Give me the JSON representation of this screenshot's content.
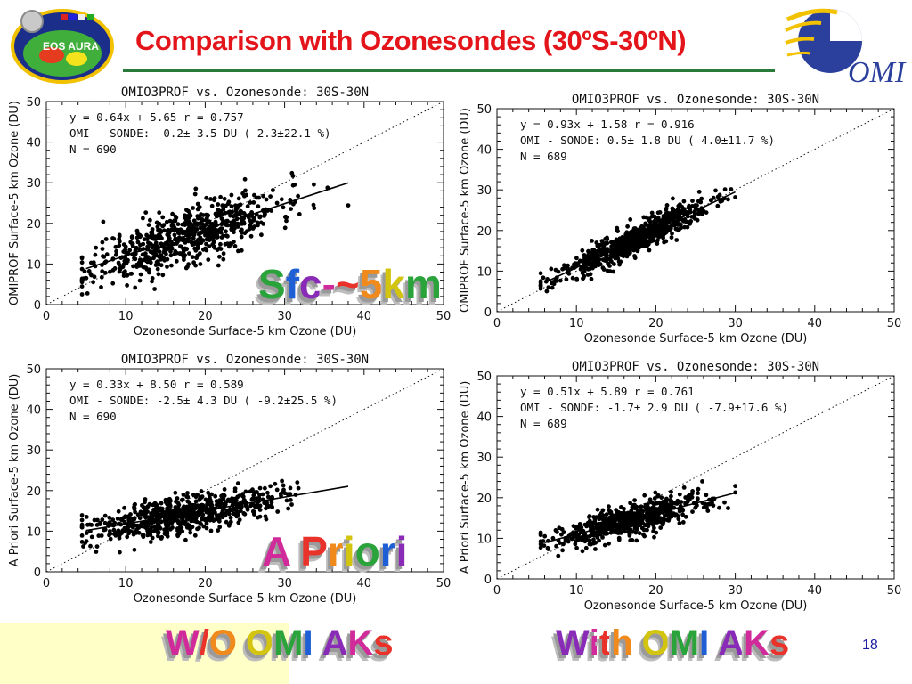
{
  "slide": {
    "title": "Comparison with Ozonesondes (30ºS-30ºN)",
    "page_number": "18",
    "logo_left_text": "EOS AURA",
    "logo_right_text": "OMI",
    "labels": {
      "sfc": "Sfc-~5km",
      "apriori": "A Priori",
      "without": "W/O OMI AKs",
      "with": "With OMI AKs"
    },
    "colors": {
      "title": "#e4141b",
      "rule": "#2a7a3b",
      "page_number": "#1a1aa0",
      "bottom_pad": "#ffffc8"
    }
  },
  "chart_data": [
    {
      "id": "tl",
      "type": "scatter",
      "title": "OMIO3PROF vs. Ozonesonde: 30S-30N",
      "xlabel": "Ozonesonde Surface-5 km Ozone (DU)",
      "ylabel": "OMIPROF Surface-5 km Ozone (DU)",
      "xlim": [
        0,
        50
      ],
      "ylim": [
        0,
        50
      ],
      "xticks": [
        "0",
        "10",
        "20",
        "30",
        "40",
        "50"
      ],
      "yticks": [
        "0",
        "10",
        "20",
        "30",
        "40",
        "50"
      ],
      "stats": [
        "y =    0.64x +    5.65    r = 0.757",
        "OMI - SONDE:   -0.2± 3.5 DU (  2.3±22.1 %)",
        "N =    690"
      ],
      "fit": {
        "slope": 0.64,
        "intercept": 5.65,
        "x_range": [
          5,
          38
        ]
      },
      "one_to_one": true,
      "scatter": {
        "n": 690,
        "x_mean": 17.5,
        "x_sd": 5.8,
        "x_min": 4.5,
        "x_max": 38,
        "resid_sd": 3.5,
        "seed": 11
      }
    },
    {
      "id": "tr",
      "type": "scatter",
      "title": "OMIO3PROF vs. Ozonesonde: 30S-30N",
      "xlabel": "Ozonesonde Surface-5 km Ozone (DU)",
      "ylabel": "OMIPROF Surface-5 km Ozone (DU)",
      "xlim": [
        0,
        50
      ],
      "ylim": [
        0,
        50
      ],
      "xticks": [
        "0",
        "10",
        "20",
        "30",
        "40",
        "50"
      ],
      "yticks": [
        "0",
        "10",
        "20",
        "30",
        "40",
        "50"
      ],
      "stats": [
        "y =    0.93x +    1.58    r = 0.916",
        "OMI - SONDE:    0.5± 1.8 DU (  4.0±11.7 %)",
        "N =    689"
      ],
      "fit": {
        "slope": 0.93,
        "intercept": 1.58,
        "x_range": [
          6,
          30
        ]
      },
      "one_to_one": true,
      "scatter": {
        "n": 689,
        "x_mean": 17,
        "x_sd": 4.8,
        "x_min": 5.5,
        "x_max": 30,
        "resid_sd": 1.8,
        "seed": 23
      }
    },
    {
      "id": "bl",
      "type": "scatter",
      "title": "OMIO3PROF vs. Ozonesonde: 30S-30N",
      "xlabel": "Ozonesonde Surface-5 km Ozone (DU)",
      "ylabel": "A Priori Surface-5 km Ozone (DU)",
      "xlim": [
        0,
        50
      ],
      "ylim": [
        0,
        50
      ],
      "xticks": [
        "0",
        "10",
        "20",
        "30",
        "40",
        "50"
      ],
      "yticks": [
        "0",
        "10",
        "20",
        "30",
        "40",
        "50"
      ],
      "stats": [
        "y =    0.33x +    8.50    r = 0.589",
        "OMI - SONDE:   -2.5± 4.3 DU ( -9.2±25.5 %)",
        "N =    690"
      ],
      "fit": {
        "slope": 0.33,
        "intercept": 8.5,
        "x_range": [
          5,
          38
        ]
      },
      "one_to_one": true,
      "scatter": {
        "n": 690,
        "x_mean": 17.5,
        "x_sd": 5.8,
        "x_min": 4.5,
        "x_max": 38,
        "resid_sd": 2.3,
        "seed": 37
      }
    },
    {
      "id": "br",
      "type": "scatter",
      "title": "OMIO3PROF vs. Ozonesonde: 30S-30N",
      "xlabel": "Ozonesonde Surface-5 km Ozone (DU)",
      "ylabel": "A Priori Surface-5 km Ozone (DU)",
      "xlim": [
        0,
        50
      ],
      "ylim": [
        0,
        50
      ],
      "xticks": [
        "0",
        "10",
        "20",
        "30",
        "40",
        "50"
      ],
      "yticks": [
        "0",
        "10",
        "20",
        "30",
        "40",
        "50"
      ],
      "stats": [
        "y =    0.51x +    5.89    r = 0.761",
        "OMI - SONDE:   -1.7± 2.9 DU ( -7.9±17.6 %)",
        "N =    689"
      ],
      "fit": {
        "slope": 0.51,
        "intercept": 5.89,
        "x_range": [
          6,
          30
        ]
      },
      "one_to_one": true,
      "scatter": {
        "n": 689,
        "x_mean": 17,
        "x_sd": 4.8,
        "x_min": 5.5,
        "x_max": 30,
        "resid_sd": 1.9,
        "seed": 53
      }
    }
  ]
}
